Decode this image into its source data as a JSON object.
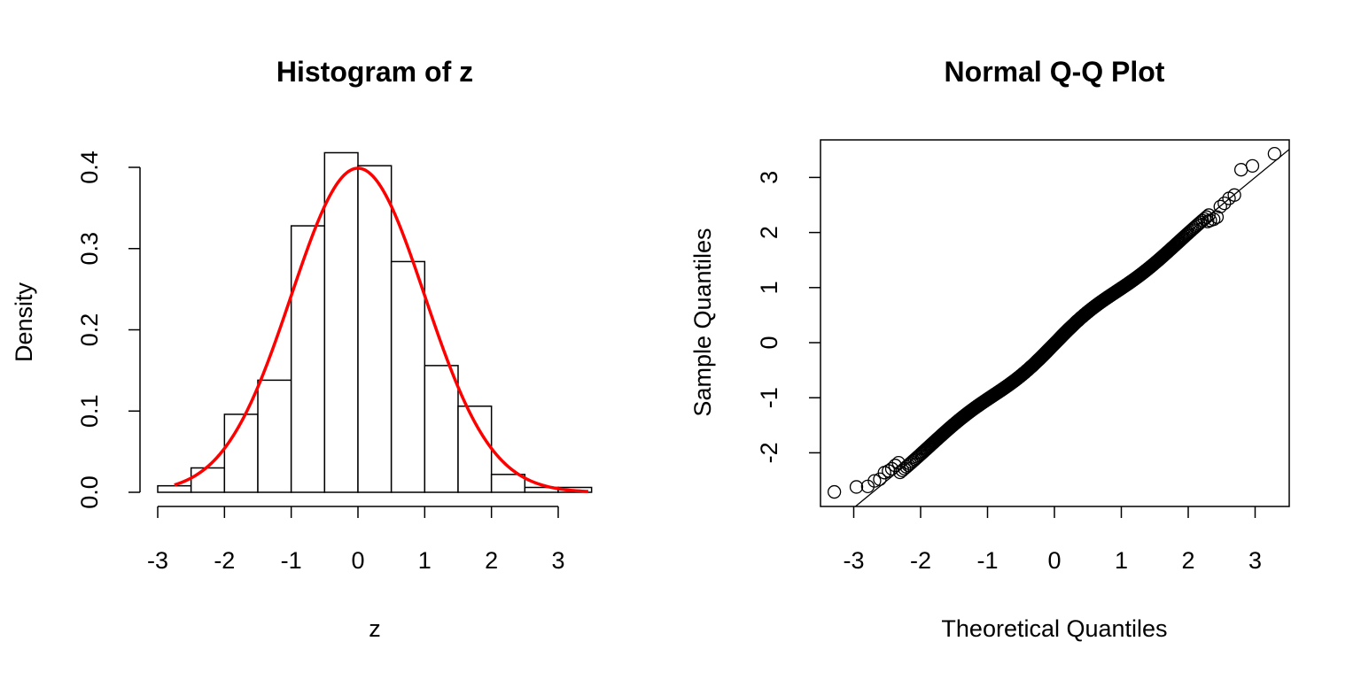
{
  "chart_data": [
    {
      "type": "bar",
      "title": "Histogram of z",
      "xlabel": "z",
      "ylabel": "Density",
      "xlim": [
        -3,
        3.5
      ],
      "ylim": [
        0,
        0.4
      ],
      "x_ticks": [
        "-3",
        "-2",
        "-1",
        "0",
        "1",
        "2",
        "3"
      ],
      "y_ticks": [
        "0.0",
        "0.1",
        "0.2",
        "0.3",
        "0.4"
      ],
      "bins": [
        {
          "from": -3.0,
          "to": -2.5,
          "density": 0.008
        },
        {
          "from": -2.5,
          "to": -2.0,
          "density": 0.03
        },
        {
          "from": -2.0,
          "to": -1.5,
          "density": 0.096
        },
        {
          "from": -1.5,
          "to": -1.0,
          "density": 0.138
        },
        {
          "from": -1.0,
          "to": -0.5,
          "density": 0.328
        },
        {
          "from": -0.5,
          "to": 0.0,
          "density": 0.418
        },
        {
          "from": 0.0,
          "to": 0.5,
          "density": 0.402
        },
        {
          "from": 0.5,
          "to": 1.0,
          "density": 0.284
        },
        {
          "from": 1.0,
          "to": 1.5,
          "density": 0.156
        },
        {
          "from": 1.5,
          "to": 2.0,
          "density": 0.106
        },
        {
          "from": 2.0,
          "to": 2.5,
          "density": 0.022
        },
        {
          "from": 2.5,
          "to": 3.0,
          "density": 0.006
        },
        {
          "from": 3.0,
          "to": 3.5,
          "density": 0.006
        }
      ],
      "overlay": {
        "type": "line",
        "curve": "normal density",
        "mean": 0,
        "sd": 1,
        "x_range": [
          -2.75,
          3.45
        ],
        "color": "#ff0000"
      },
      "grid": false,
      "bar_fill": "#ffffff",
      "bar_stroke": "#000000"
    },
    {
      "type": "scatter",
      "title": "Normal Q-Q Plot",
      "xlabel": "Theoretical Quantiles",
      "ylabel": "Sample Quantiles",
      "xlim": [
        -3.4,
        3.5
      ],
      "ylim": [
        -2.9,
        3.7
      ],
      "x_ticks": [
        "-3",
        "-2",
        "-1",
        "0",
        "1",
        "2",
        "3"
      ],
      "y_ticks": [
        "-2",
        "-1",
        "0",
        "1",
        "2",
        "3"
      ],
      "points_approx": {
        "n": 1000,
        "description": "sample quantiles of z against theoretical normal quantiles"
      },
      "outlier_points": [
        {
          "x": -3.29,
          "y": -2.71
        },
        {
          "x": -2.96,
          "y": -2.62
        },
        {
          "x": -2.79,
          "y": -2.61
        },
        {
          "x": -2.69,
          "y": -2.51
        },
        {
          "x": -2.61,
          "y": -2.48
        },
        {
          "x": -2.54,
          "y": -2.36
        },
        {
          "x": -2.48,
          "y": -2.33
        },
        {
          "x": -2.43,
          "y": -2.29
        },
        {
          "x": -2.38,
          "y": -2.23
        },
        {
          "x": -2.33,
          "y": -2.18
        },
        {
          "x": 2.29,
          "y": 2.2
        },
        {
          "x": 2.33,
          "y": 2.22
        },
        {
          "x": 2.38,
          "y": 2.24
        },
        {
          "x": 2.43,
          "y": 2.28
        },
        {
          "x": 2.48,
          "y": 2.47
        },
        {
          "x": 2.54,
          "y": 2.53
        },
        {
          "x": 2.61,
          "y": 2.62
        },
        {
          "x": 2.69,
          "y": 2.68
        },
        {
          "x": 2.79,
          "y": 3.14
        },
        {
          "x": 2.96,
          "y": 3.21
        },
        {
          "x": 3.29,
          "y": 3.43
        }
      ],
      "reference_line": {
        "intercept": 0,
        "slope": 1
      },
      "grid": false,
      "box": true
    }
  ]
}
